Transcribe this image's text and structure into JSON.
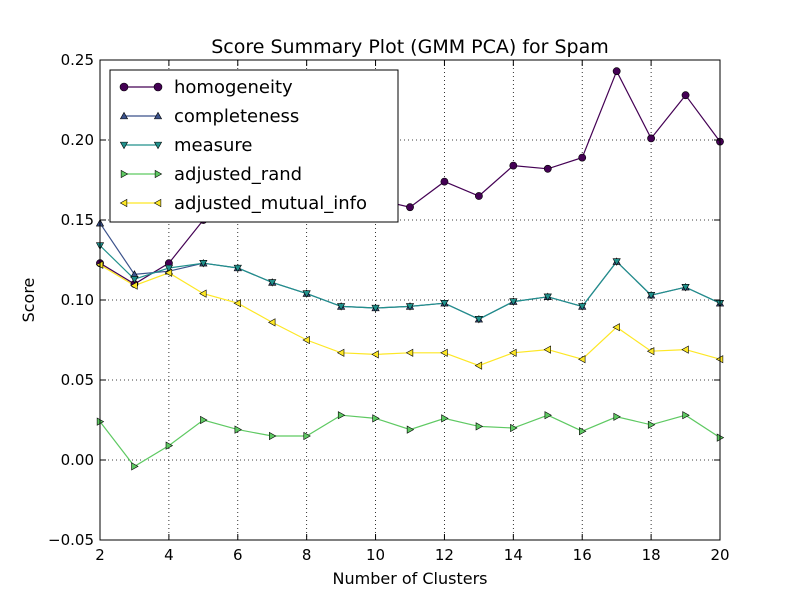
{
  "chart_data": {
    "type": "line",
    "title": "Score Summary Plot (GMM PCA) for Spam",
    "xlabel": "Number of Clusters",
    "ylabel": "Score",
    "xlim": [
      2,
      20
    ],
    "ylim": [
      -0.05,
      0.25
    ],
    "xticks": [
      2,
      4,
      6,
      8,
      10,
      12,
      14,
      16,
      18,
      20
    ],
    "yticks": [
      -0.05,
      0.0,
      0.05,
      0.1,
      0.15,
      0.2,
      0.25
    ],
    "ytick_labels": [
      "−0.05",
      "0.00",
      "0.05",
      "0.10",
      "0.15",
      "0.20",
      "0.25"
    ],
    "grid": true,
    "legend_position": "top-left",
    "x": [
      2,
      3,
      4,
      5,
      6,
      7,
      8,
      9,
      10,
      11,
      12,
      13,
      14,
      15,
      16,
      17,
      18,
      19,
      20
    ],
    "series": [
      {
        "name": "homogeneity",
        "marker": "circle",
        "color": "#440154",
        "values": [
          0.123,
          0.11,
          0.123,
          0.15,
          0.155,
          0.158,
          0.16,
          0.162,
          0.163,
          0.158,
          0.174,
          0.165,
          0.184,
          0.182,
          0.189,
          0.243,
          0.201,
          0.228,
          0.199
        ]
      },
      {
        "name": "completeness",
        "marker": "triangle-up",
        "color": "#3b528b",
        "values": [
          0.148,
          0.116,
          0.118,
          0.123,
          0.12,
          0.111,
          0.104,
          0.096,
          0.095,
          0.096,
          0.098,
          0.088,
          0.099,
          0.102,
          0.096,
          0.124,
          0.103,
          0.108,
          0.098
        ]
      },
      {
        "name": "measure",
        "marker": "triangle-down",
        "color": "#21918c",
        "values": [
          0.134,
          0.113,
          0.12,
          0.123,
          0.12,
          0.111,
          0.104,
          0.096,
          0.095,
          0.096,
          0.098,
          0.088,
          0.099,
          0.102,
          0.096,
          0.124,
          0.103,
          0.108,
          0.098
        ]
      },
      {
        "name": "adjusted_rand",
        "marker": "triangle-right",
        "color": "#5ec962",
        "values": [
          0.024,
          -0.004,
          0.009,
          0.025,
          0.019,
          0.015,
          0.015,
          0.028,
          0.026,
          0.019,
          0.026,
          0.021,
          0.02,
          0.028,
          0.018,
          0.027,
          0.022,
          0.028,
          0.014
        ]
      },
      {
        "name": "adjusted_mutual_info",
        "marker": "triangle-left",
        "color": "#fde725",
        "values": [
          0.122,
          0.109,
          0.117,
          0.104,
          0.098,
          0.086,
          0.075,
          0.067,
          0.066,
          0.067,
          0.067,
          0.059,
          0.067,
          0.069,
          0.063,
          0.083,
          0.068,
          0.069,
          0.063
        ]
      }
    ]
  }
}
